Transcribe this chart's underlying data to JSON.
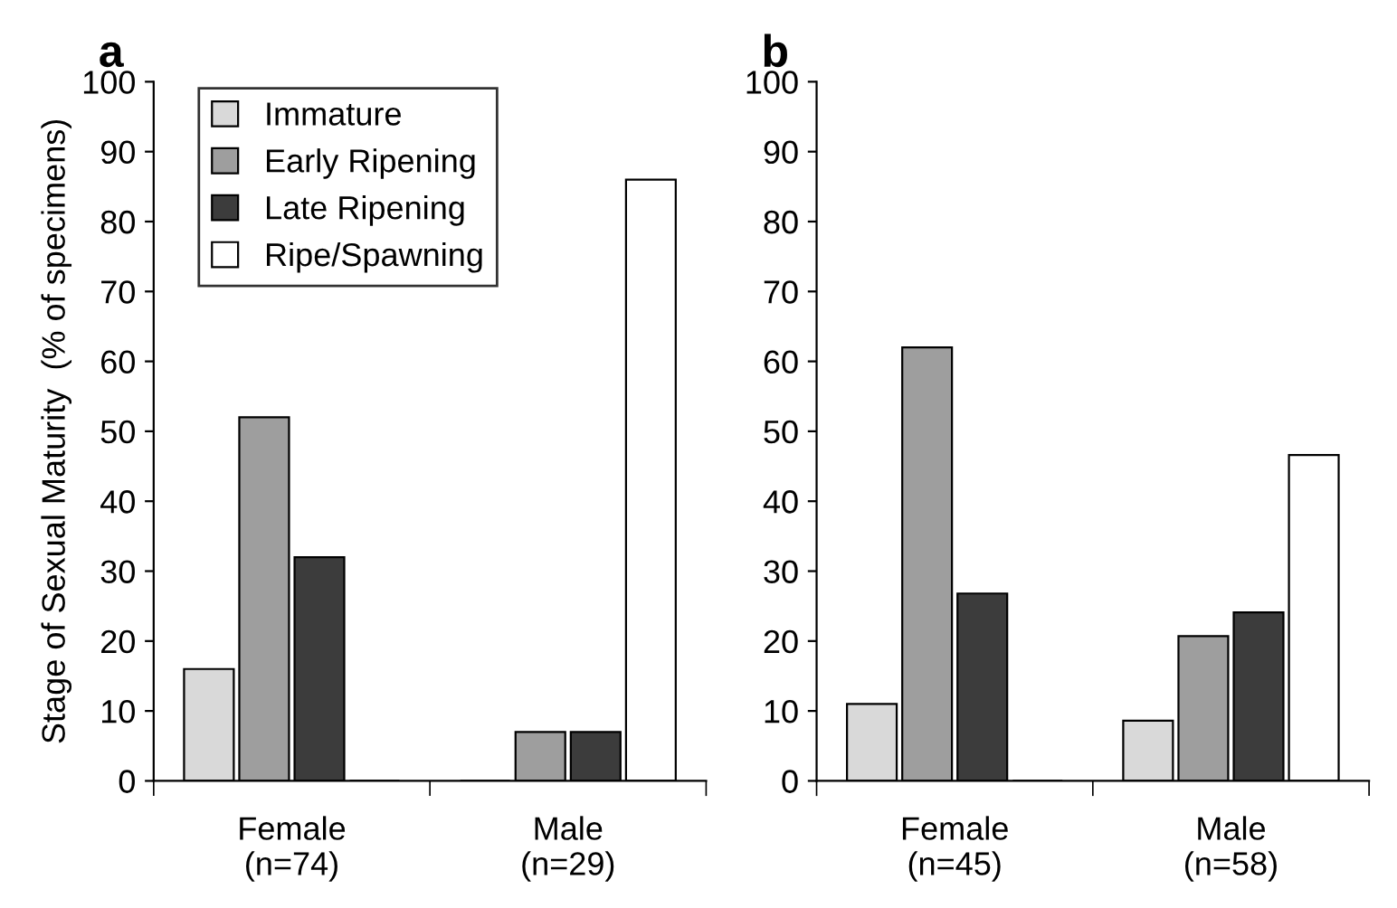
{
  "chart_data": [
    {
      "type": "bar",
      "title": "a",
      "ylabel": "Stage of Sexual Maturity  (% of specimens)",
      "categories": [
        "Female\n(n=74)",
        "Male\n(n=29)"
      ],
      "ylim": [
        0,
        100
      ],
      "yticks": [
        0,
        10,
        20,
        30,
        40,
        50,
        60,
        70,
        80,
        90,
        100
      ],
      "grid": false,
      "legend": "top left",
      "series": [
        {
          "name": "Immature",
          "color": "#d9d9d9",
          "values": [
            16,
            0
          ]
        },
        {
          "name": "Early Ripening",
          "color": "#9e9e9e",
          "values": [
            52,
            7
          ]
        },
        {
          "name": "Late Ripening",
          "color": "#3c3c3c",
          "values": [
            32,
            7
          ]
        },
        {
          "name": "Ripe/Spawning",
          "color": "#ffffff",
          "values": [
            0,
            86
          ]
        }
      ]
    },
    {
      "type": "bar",
      "title": "b",
      "categories": [
        "Female\n(n=45)",
        "Male\n(n=58)"
      ],
      "ylim": [
        0,
        100
      ],
      "yticks": [
        0,
        10,
        20,
        30,
        40,
        50,
        60,
        70,
        80,
        90,
        100
      ],
      "grid": false,
      "legend": false,
      "series": [
        {
          "color": "#d9d9d9",
          "values": [
            11,
            8.6
          ]
        },
        {
          "color": "#9e9e9e",
          "values": [
            62,
            20.7
          ]
        },
        {
          "color": "#3c3c3c",
          "values": [
            26.8,
            24.1
          ]
        },
        {
          "color": "#ffffff",
          "values": [
            0,
            46.6
          ]
        }
      ]
    }
  ]
}
